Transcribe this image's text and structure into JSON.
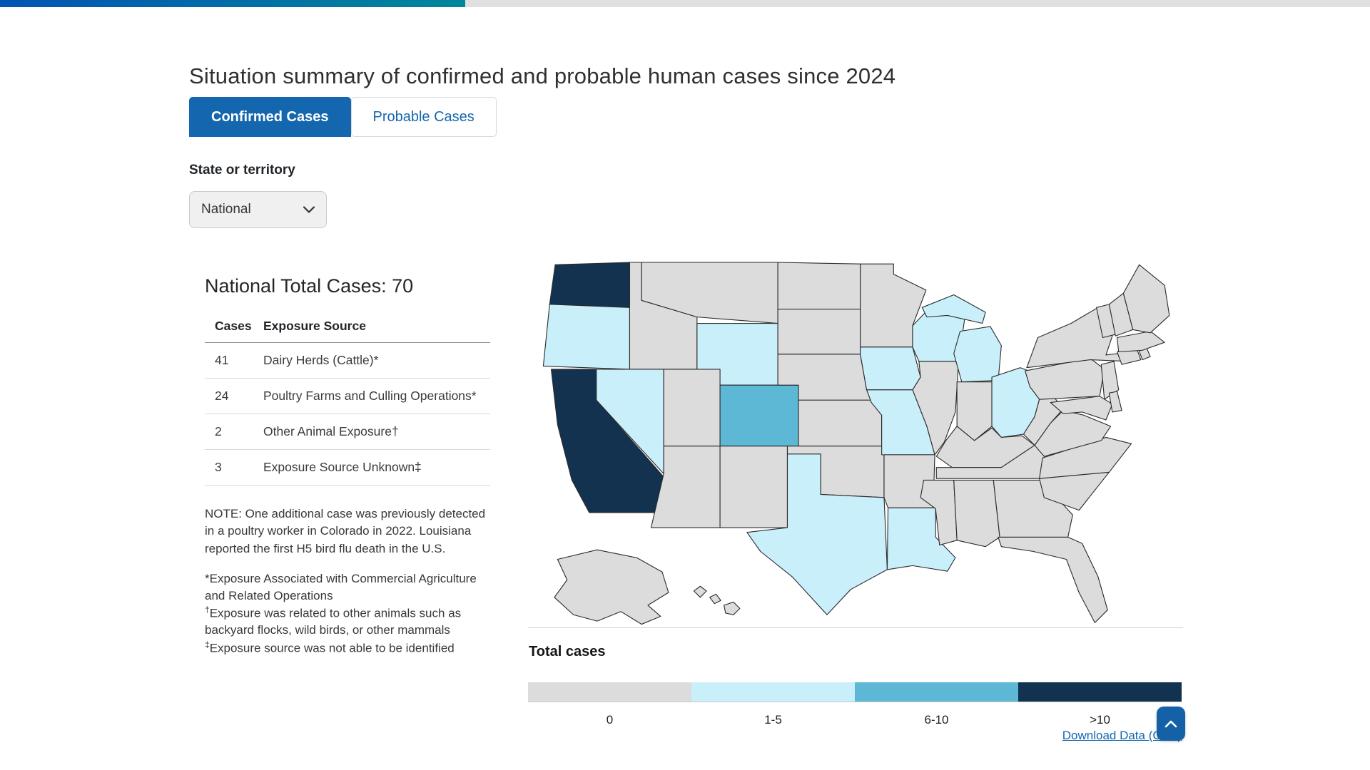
{
  "top_bar": {
    "gradient_start": "#0353b4",
    "gradient_end": "#00879a",
    "rest_color": "#e0e0e0"
  },
  "header": {
    "title": "Situation summary of confirmed and probable human cases since 2024"
  },
  "tabs": [
    {
      "label": "Confirmed Cases",
      "active": true
    },
    {
      "label": "Probable Cases",
      "active": false
    }
  ],
  "filter": {
    "label": "State or territory",
    "selected": "National"
  },
  "summary": {
    "title": "National Total Cases: 70",
    "table": {
      "columns": [
        "Cases",
        "Exposure Source"
      ],
      "rows": [
        [
          "41",
          "Dairy Herds (Cattle)*"
        ],
        [
          "24",
          "Poultry Farms and Culling Operations*"
        ],
        [
          "2",
          "Other Animal Exposure†"
        ],
        [
          "3",
          "Exposure Source Unknown‡"
        ]
      ]
    },
    "note": "NOTE: One additional case was previously detected in a poultry worker in Colorado in 2022. Louisiana reported the first H5 bird flu death in the U.S.",
    "footnotes": [
      {
        "marker": "*",
        "text": "Exposure Associated with Commercial Agriculture and Related Operations"
      },
      {
        "marker": "†",
        "text": "Exposure was related to other animals such as backyard flocks, wild birds, or other mammals"
      },
      {
        "marker": "‡",
        "text": "Exposure source was not able to be identified"
      }
    ]
  },
  "map": {
    "legend_title": "Total cases",
    "classes": [
      {
        "label": "0",
        "color": "#dcdcdc"
      },
      {
        "label": "1-5",
        "color": "#c9effb"
      },
      {
        "label": "6-10",
        "color": "#5db8d6"
      },
      {
        "label": ">10",
        "color": "#123250"
      }
    ],
    "download_label": "Download Data (CSV)"
  },
  "chart_data": {
    "type": "choropleth-map",
    "title": "Total cases",
    "legend_classes": [
      "0",
      "1-5",
      "6-10",
      ">10"
    ],
    "national_total": 70,
    "exposure_sources": {
      "Dairy Herds (Cattle)": 41,
      "Poultry Farms and Culling Operations": 24,
      "Other Animal Exposure": 2,
      "Exposure Source Unknown": 3
    },
    "state_categories": {
      "WA": ">10",
      "CA": ">10",
      "CO": "6-10",
      "OR": "1-5",
      "NV": "1-5",
      "WY": "1-5",
      "TX": "1-5",
      "LA": "1-5",
      "IA": "1-5",
      "MO": "1-5",
      "WI": "1-5",
      "MI": "1-5",
      "OH": "1-5",
      "default": "0"
    }
  },
  "scroll_top": {
    "icon": "chevron-up"
  }
}
